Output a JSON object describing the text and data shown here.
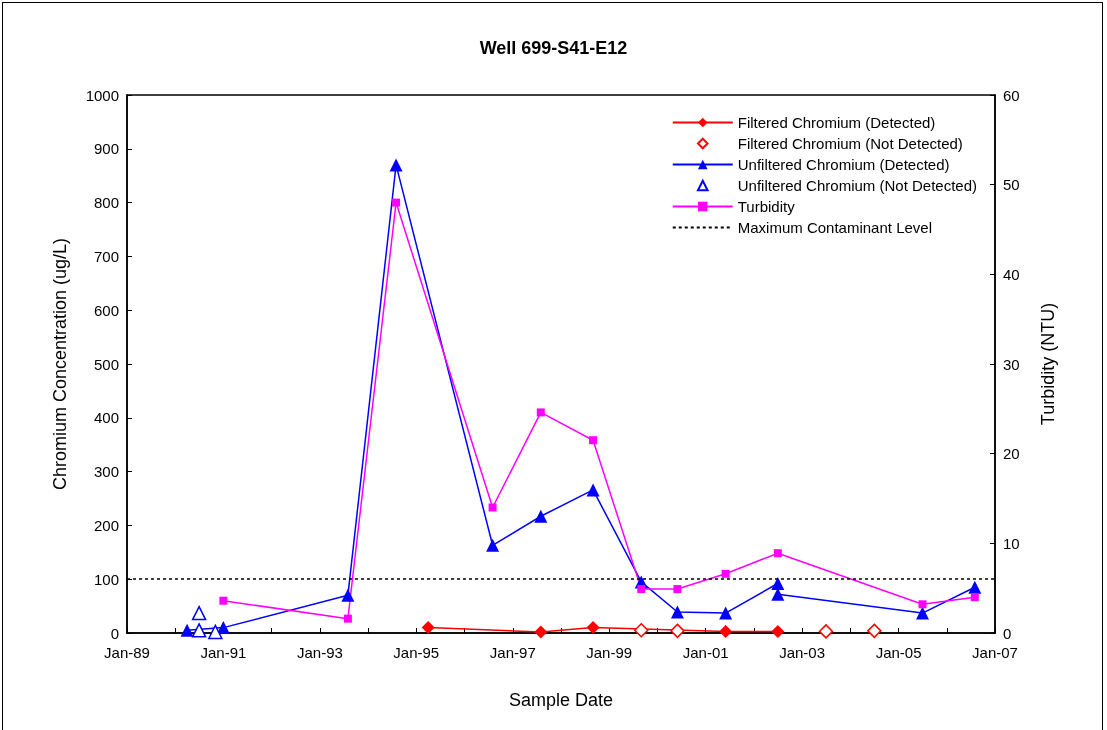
{
  "chart_data": {
    "type": "line",
    "title": "Well 699-S41-E12",
    "xlabel": "Sample Date",
    "ylabel": "Chromium Concentration (ug/L)",
    "y2label": "Turbidity (NTU)",
    "xlim": [
      "1989-01",
      "2007-01"
    ],
    "xticks": [
      {
        "value": "1989-01",
        "label": "Jan-89"
      },
      {
        "value": "1990-01",
        "label": null
      },
      {
        "value": "1991-01",
        "label": "Jan-91"
      },
      {
        "value": "1992-01",
        "label": null
      },
      {
        "value": "1993-01",
        "label": "Jan-93"
      },
      {
        "value": "1994-01",
        "label": null
      },
      {
        "value": "1995-01",
        "label": "Jan-95"
      },
      {
        "value": "1996-01",
        "label": null
      },
      {
        "value": "1997-01",
        "label": "Jan-97"
      },
      {
        "value": "1998-01",
        "label": null
      },
      {
        "value": "1999-01",
        "label": "Jan-99"
      },
      {
        "value": "2000-01",
        "label": null
      },
      {
        "value": "2001-01",
        "label": "Jan-01"
      },
      {
        "value": "2002-01",
        "label": null
      },
      {
        "value": "2003-01",
        "label": "Jan-03"
      },
      {
        "value": "2004-01",
        "label": null
      },
      {
        "value": "2005-01",
        "label": "Jan-05"
      },
      {
        "value": "2006-01",
        "label": null
      },
      {
        "value": "2007-01",
        "label": "Jan-07"
      }
    ],
    "ylim": [
      0,
      1000
    ],
    "yticks": [
      0,
      100,
      200,
      300,
      400,
      500,
      600,
      700,
      800,
      900,
      1000
    ],
    "y2lim": [
      0,
      60
    ],
    "y2ticks": [
      0,
      10,
      20,
      30,
      40,
      50,
      60
    ],
    "grid": false,
    "legend": "top right",
    "series": [
      {
        "name": "Filtered Chromium (Detected)",
        "marker": "diamond",
        "color": "#ff0000",
        "x": [
          "1995-04",
          "1997-08",
          "1998-09",
          "2001-06",
          "2002-07"
        ],
        "values": [
          10,
          2,
          10,
          3,
          3
        ]
      },
      {
        "name": "Filtered Chromium (Not Detected)",
        "type": "scatter",
        "marker": "diamond",
        "color": "#ff0000",
        "x": [
          "1999-09",
          "2000-06",
          "2003-07",
          "2004-07"
        ],
        "values": [
          5,
          4,
          3,
          4
        ]
      },
      {
        "name": "Unfiltered Chromium (Detected)",
        "marker": "triangle",
        "color": "#0000ff",
        "x": [
          "1990-04",
          "1991-01",
          "1993-08",
          "1994-08",
          "1996-08",
          "1997-08",
          "1998-09",
          "1999-09",
          "2000-06",
          "2001-06",
          "2002-07",
          "2002-07",
          "2005-07",
          "2006-08"
        ],
        "values": [
          5,
          10,
          70,
          870,
          163,
          217,
          266,
          95,
          39,
          37,
          92,
          72,
          37,
          85
        ]
      },
      {
        "name": "Unfiltered Chromium (Not Detected)",
        "type": "scatter",
        "marker": "triangle",
        "color": "#0000ff",
        "x": [
          "1990-07",
          "1990-07",
          "1990-11"
        ],
        "values": [
          37,
          5,
          2
        ]
      },
      {
        "name": "Turbidity",
        "marker": "square",
        "color": "#ff00ff",
        "axis": "y2",
        "x": [
          "1991-01",
          "1993-08",
          "1994-08",
          "1996-08",
          "1997-08",
          "1998-09",
          "1999-09",
          "2000-06",
          "2001-06",
          "2002-07",
          "2005-07",
          "2006-08"
        ],
        "values": [
          3.6,
          1.6,
          48,
          14,
          24.6,
          21.5,
          4.9,
          4.9,
          6.6,
          8.9,
          3.2,
          4
        ]
      }
    ],
    "ref_lines": [
      {
        "axis": "y",
        "value": 100,
        "label": "Maximum Contaminant Level",
        "color": "#000000",
        "line_style": "dotted"
      }
    ]
  }
}
